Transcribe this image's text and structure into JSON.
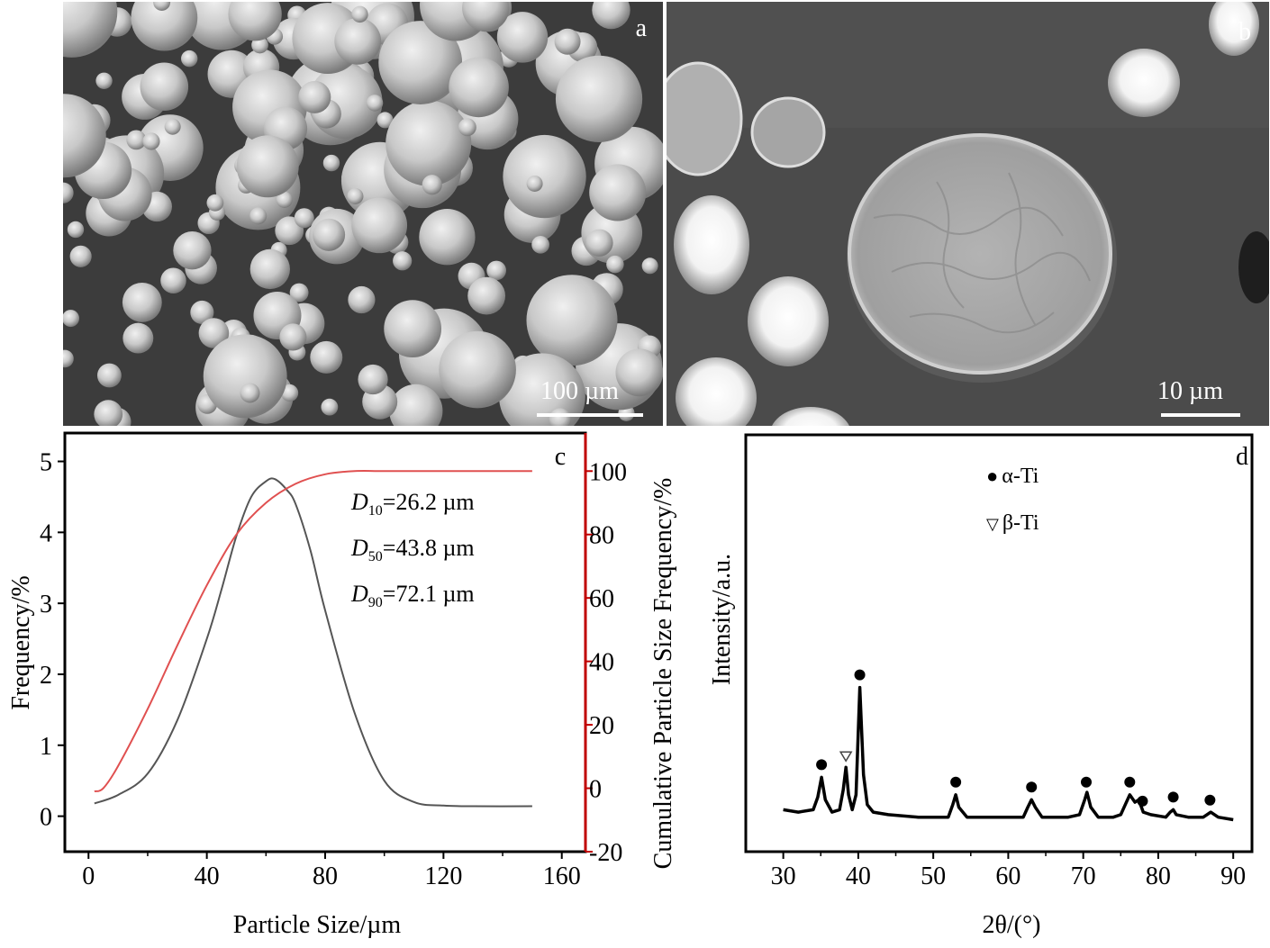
{
  "panel_a": {
    "letter": "a",
    "scale_label": "100 µm"
  },
  "panel_b": {
    "letter": "b",
    "scale_label": "10 µm"
  },
  "chart_data": [
    {
      "panel": "c",
      "type": "line",
      "xlabel": "Particle Size/µm",
      "ylabel_left": "Frequency/%",
      "ylabel_right": "Cumulative Particle Size Frequency/%",
      "xlim": [
        -8,
        168
      ],
      "ylim_left": [
        -0.5,
        5.4
      ],
      "ylim_right": [
        -20,
        112
      ],
      "xticks": [
        0,
        40,
        80,
        120,
        160
      ],
      "yticks_left": [
        0,
        1,
        2,
        3,
        4,
        5
      ],
      "yticks_right": [
        -20,
        0,
        20,
        40,
        60,
        80,
        100
      ],
      "colors": {
        "frequency": "#555555",
        "cumulative": "#e05050",
        "right_axis": "#c00000"
      },
      "annotations": [
        {
          "sym": "D",
          "sub": "10",
          "text": "=26.2 µm"
        },
        {
          "sym": "D",
          "sub": "50",
          "text": "=43.8 µm"
        },
        {
          "sym": "D",
          "sub": "90",
          "text": "=72.1 µm"
        }
      ],
      "series": [
        {
          "axis": "left",
          "x": [
            2,
            10,
            20,
            30,
            40,
            45,
            50,
            55,
            60,
            63,
            67,
            70,
            75,
            80,
            90,
            100,
            110,
            120,
            130,
            150
          ],
          "y": [
            0.18,
            0.3,
            0.6,
            1.35,
            2.5,
            3.2,
            3.95,
            4.5,
            4.72,
            4.75,
            4.6,
            4.4,
            3.75,
            2.9,
            1.45,
            0.5,
            0.2,
            0.15,
            0.14,
            0.14
          ]
        },
        {
          "axis": "right",
          "x": [
            2,
            5,
            10,
            20,
            30,
            40,
            50,
            60,
            70,
            80,
            90,
            100,
            120,
            150
          ],
          "y": [
            -1,
            0,
            7,
            25,
            45,
            64,
            80,
            90,
            96,
            99,
            100,
            100,
            100,
            100
          ]
        }
      ]
    },
    {
      "panel": "d",
      "type": "line",
      "xlabel": "2θ/(°)",
      "ylabel": "Intensity/a.u.",
      "xlim": [
        25,
        92.5
      ],
      "ylim": [
        -2,
        120
      ],
      "xticks": [
        30,
        40,
        50,
        60,
        70,
        80,
        90
      ],
      "legend": [
        {
          "marker": "●",
          "label": "α-Ti"
        },
        {
          "marker": "▽",
          "label": "β-Ti"
        }
      ],
      "series": [
        {
          "x": [
            30,
            32,
            34,
            34.6,
            35.1,
            35.6,
            36.5,
            37.5,
            38.0,
            38.35,
            38.7,
            39.2,
            39.7,
            40.2,
            40.7,
            41.2,
            42,
            44,
            48,
            52,
            52.6,
            53.0,
            53.4,
            54.5,
            58,
            62,
            62.6,
            63.1,
            63.6,
            64.5,
            68,
            69.5,
            70.2,
            70.5,
            71.0,
            72,
            74,
            75,
            75.6,
            76.2,
            76.9,
            77.4,
            78.0,
            79,
            81,
            81.6,
            82.0,
            82.4,
            84,
            86,
            86.5,
            87.0,
            88,
            90
          ],
          "y": [
            4,
            3,
            4,
            9,
            17,
            8,
            3,
            4,
            12,
            21,
            10,
            4,
            10,
            53,
            18,
            6,
            3,
            2,
            1,
            1,
            6,
            10,
            5,
            1,
            1,
            1,
            5,
            8,
            5,
            1,
            1,
            2,
            8,
            11,
            5,
            1,
            1,
            2,
            6,
            10,
            7,
            8,
            3,
            2,
            1,
            3,
            4,
            2,
            1,
            1,
            2,
            3,
            1,
            0
          ]
        }
      ],
      "peak_markers": [
        {
          "phase": "α-Ti",
          "x": [
            35.1,
            40.2,
            53.0,
            63.1,
            70.4,
            76.2,
            77.9,
            82.0,
            86.9
          ]
        },
        {
          "phase": "β-Ti",
          "x": [
            38.35
          ]
        }
      ]
    }
  ],
  "panel_c": {
    "letter": "c"
  },
  "panel_d": {
    "letter": "d"
  }
}
